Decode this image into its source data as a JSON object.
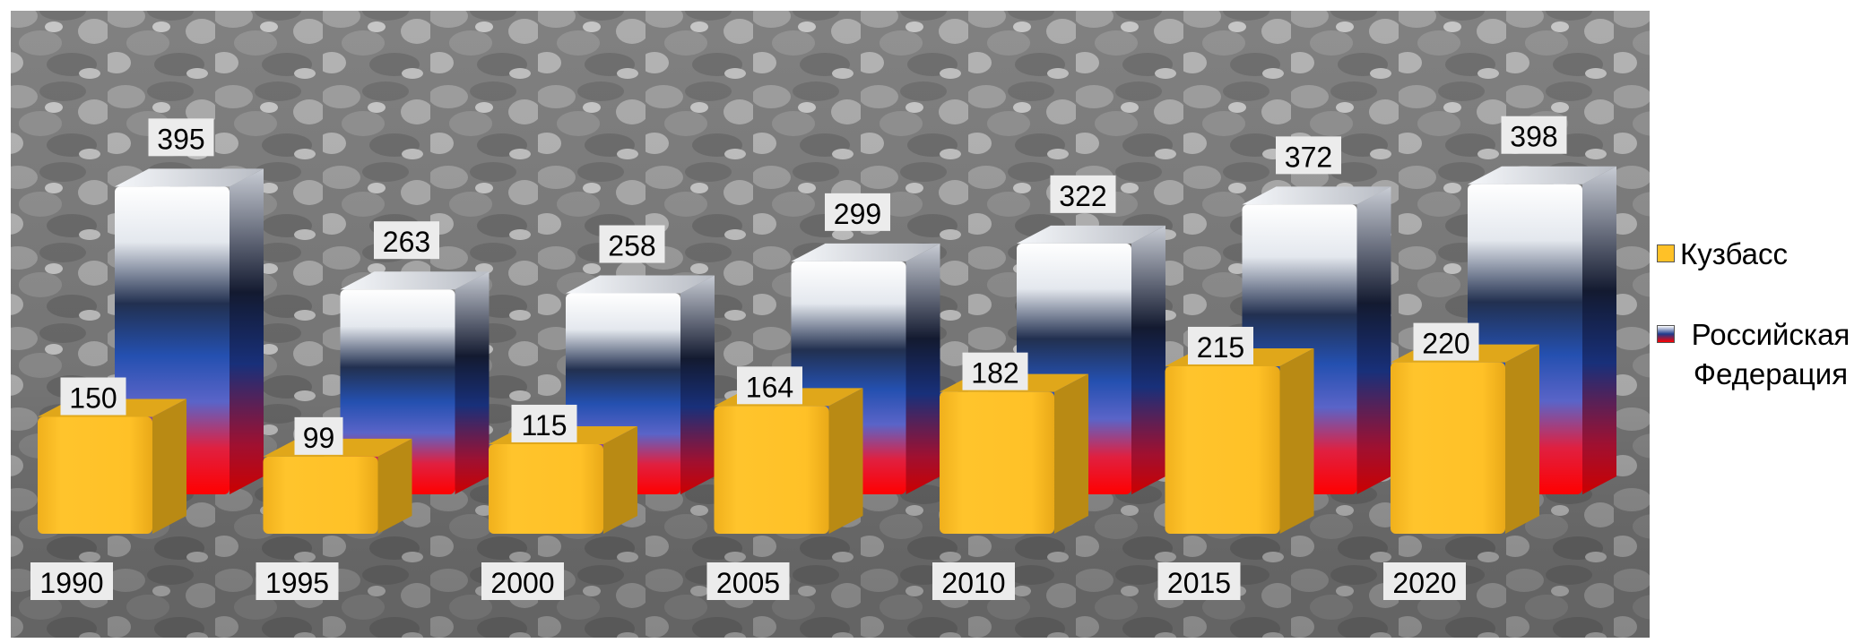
{
  "chart_data": {
    "type": "bar",
    "categories": [
      "1990",
      "1995",
      "2000",
      "2005",
      "2010",
      "2015",
      "2020"
    ],
    "series": [
      {
        "name": "Кузбасс",
        "values": [
          150,
          99,
          115,
          164,
          182,
          215,
          220
        ]
      },
      {
        "name": "Российская Федерация",
        "values": [
          395,
          263,
          258,
          299,
          322,
          372,
          398
        ]
      }
    ],
    "legend_position": "right",
    "grid": false
  },
  "colors": {
    "kuzbass_front": "#FFC127",
    "kuzbass_top": "#E0A71A",
    "kuzbass_side": "#B98A14",
    "rf_white": "#FFFFFF",
    "rf_blue": "#1E3A8C",
    "rf_red": "#FF0000",
    "plot_background": "#7F7F7F",
    "label_box": "#ECECEC"
  },
  "legend": {
    "items": [
      {
        "label": "Кузбасс",
        "icon": "kuzbass-swatch-icon"
      },
      {
        "label": "Российская Федерация",
        "icon": "rf-swatch-icon"
      }
    ]
  }
}
